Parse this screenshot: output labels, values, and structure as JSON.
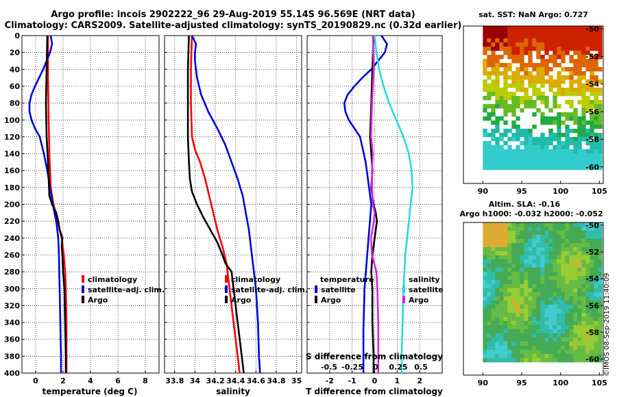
{
  "title_line1": "Argo profile: incois 2902222_96 29-Aug-2019 55.14S 96.569E (NRT data)",
  "title_line2": "Climatology: CARS2009. Satellite-adjusted climatology: synTS_20190829.nc (0.32d earlier)",
  "watermark": "©IMOS 08-Sep-2019 11:40:09",
  "colors": {
    "climatology": "#ff0000",
    "satellite": "#0000dd",
    "argo": "#000000",
    "sat_salinity": "#22dddd",
    "argo_salinity": "#dd22dd"
  },
  "chart_data": [
    {
      "type": "line",
      "name": "temperature",
      "xlabel": "temperature (deg C)",
      "xlim": [
        -1,
        9
      ],
      "xticks": [
        0,
        2,
        4,
        6,
        8
      ],
      "ylim": [
        400,
        0
      ],
      "yticks": [
        0,
        20,
        40,
        60,
        80,
        100,
        120,
        140,
        160,
        180,
        200,
        220,
        240,
        260,
        280,
        300,
        320,
        340,
        360,
        380,
        400
      ],
      "legend": [
        "climatology",
        "satellite-adj. clim.",
        "Argo"
      ],
      "series": [
        {
          "name": "climatology",
          "color": "climatology",
          "depth": [
            0,
            50,
            100,
            140,
            180,
            200,
            220,
            240,
            260,
            280,
            300,
            340,
            380,
            400
          ],
          "values": [
            0.9,
            0.9,
            0.95,
            1.0,
            1.1,
            1.3,
            1.6,
            1.9,
            2.05,
            2.15,
            2.2,
            2.25,
            2.25,
            2.25
          ]
        },
        {
          "name": "satellite-adj. clim.",
          "color": "satellite",
          "depth": [
            0,
            10,
            20,
            30,
            40,
            50,
            60,
            70,
            80,
            90,
            100,
            110,
            120,
            140,
            160,
            180,
            200,
            220,
            240,
            260,
            280,
            300,
            340,
            380,
            400
          ],
          "values": [
            1.1,
            1.2,
            1.05,
            0.8,
            0.55,
            0.25,
            -0.05,
            -0.3,
            -0.45,
            -0.45,
            -0.3,
            -0.05,
            0.3,
            0.6,
            0.85,
            1.05,
            1.25,
            1.5,
            1.65,
            1.7,
            1.72,
            1.75,
            1.8,
            1.85,
            1.85
          ]
        },
        {
          "name": "Argo",
          "color": "argo",
          "depth": [
            0,
            40,
            80,
            120,
            150,
            170,
            190,
            200,
            210,
            220,
            230,
            240,
            250,
            260,
            280,
            300,
            340,
            380,
            400
          ],
          "values": [
            0.85,
            0.8,
            0.75,
            0.8,
            0.9,
            0.95,
            1.0,
            1.2,
            1.5,
            1.65,
            1.75,
            1.95,
            1.9,
            1.95,
            2.0,
            2.1,
            2.15,
            2.2,
            2.2
          ]
        }
      ]
    },
    {
      "type": "line",
      "name": "salinity",
      "xlabel": "salinity",
      "xlim": [
        33.7,
        35.05
      ],
      "xticks": [
        33.8,
        34,
        34.2,
        34.4,
        34.6,
        34.8,
        35
      ],
      "xticklabels": [
        "33.8",
        "34",
        "34.2",
        "34.4",
        "34.6",
        "34.8",
        "35"
      ],
      "ylim": [
        400,
        0
      ],
      "legend": [
        "climatology",
        "satellite-adj. clim.",
        "Argo"
      ],
      "series": [
        {
          "name": "climatology",
          "color": "climatology",
          "depth": [
            0,
            40,
            80,
            120,
            135,
            150,
            170,
            190,
            210,
            230,
            250,
            270,
            300,
            340,
            380,
            400
          ],
          "values": [
            33.97,
            33.96,
            33.96,
            33.97,
            34.0,
            34.05,
            34.1,
            34.14,
            34.18,
            34.22,
            34.27,
            34.31,
            34.34,
            34.38,
            34.42,
            34.44
          ]
        },
        {
          "name": "satellite-adj. clim.",
          "color": "satellite",
          "depth": [
            0,
            10,
            20,
            30,
            50,
            70,
            90,
            110,
            130,
            150,
            170,
            190,
            210,
            230,
            260,
            300,
            340,
            380,
            400
          ],
          "values": [
            33.97,
            34.01,
            34.0,
            34.0,
            34.02,
            34.06,
            34.13,
            34.22,
            34.3,
            34.36,
            34.42,
            34.47,
            34.5,
            34.53,
            34.56,
            34.6,
            34.62,
            34.63,
            34.64
          ]
        },
        {
          "name": "Argo",
          "color": "argo",
          "depth": [
            0,
            40,
            80,
            120,
            150,
            170,
            185,
            200,
            215,
            230,
            245,
            260,
            270,
            280,
            300,
            340,
            380,
            400
          ],
          "values": [
            33.94,
            33.93,
            33.93,
            33.93,
            33.94,
            33.95,
            33.97,
            34.02,
            34.08,
            34.15,
            34.22,
            34.27,
            34.3,
            34.36,
            34.38,
            34.42,
            34.46,
            34.48
          ]
        }
      ]
    },
    {
      "type": "line",
      "name": "difference",
      "xlabel": "T difference from climatology",
      "xlim": [
        -3,
        3
      ],
      "xticks": [
        -2,
        -1,
        0,
        1,
        2
      ],
      "xlabel_top": "S difference from climatology",
      "s_ticklabels": [
        "-0.5",
        "-0.25",
        "0",
        "0.25",
        "0.5"
      ],
      "ylim": [
        400,
        0
      ],
      "legend_left": {
        "heading": "temperature",
        "items": [
          "satellite",
          "Argo"
        ]
      },
      "legend_right": {
        "heading": "salinity",
        "items": [
          "satellite",
          "Argo"
        ]
      },
      "series": [
        {
          "name": "T satellite",
          "color": "satellite",
          "depth": [
            0,
            10,
            20,
            30,
            40,
            50,
            60,
            70,
            80,
            90,
            100,
            110,
            120,
            150,
            200,
            250,
            300,
            350,
            400
          ],
          "values": [
            0.3,
            0.55,
            0.45,
            0.15,
            -0.15,
            -0.55,
            -0.9,
            -1.2,
            -1.35,
            -1.3,
            -1.15,
            -0.9,
            -0.65,
            -0.4,
            -0.15,
            -0.3,
            -0.45,
            -0.5,
            -0.5
          ]
        },
        {
          "name": "T Argo",
          "color": "argo",
          "depth": [
            0,
            40,
            80,
            120,
            140,
            160,
            180,
            190,
            200,
            210,
            220,
            240,
            260,
            280,
            300,
            340,
            380,
            400
          ],
          "values": [
            -0.05,
            -0.1,
            -0.15,
            -0.2,
            -0.15,
            -0.1,
            -0.15,
            -0.1,
            -0.05,
            0.05,
            0.1,
            0.0,
            -0.1,
            -0.15,
            -0.1,
            -0.1,
            -0.05,
            -0.05
          ]
        },
        {
          "name": "S satellite",
          "color": "sat_salinity",
          "depth": [
            0,
            20,
            40,
            60,
            80,
            100,
            120,
            140,
            160,
            180,
            200,
            220,
            240,
            260,
            280,
            300,
            340,
            380,
            400
          ],
          "values": [
            0.0,
            0.02,
            0.05,
            0.1,
            0.16,
            0.24,
            0.32,
            0.38,
            0.41,
            0.42,
            0.4,
            0.38,
            0.36,
            0.34,
            0.33,
            0.32,
            0.31,
            0.3,
            0.3
          ]
        },
        {
          "name": "S Argo",
          "color": "argo_salinity",
          "depth": [
            0,
            40,
            80,
            120,
            140,
            160,
            180,
            200,
            210,
            220,
            240,
            260,
            280,
            300,
            340,
            380,
            400
          ],
          "values": [
            -0.02,
            -0.01,
            -0.03,
            -0.04,
            -0.02,
            -0.03,
            -0.03,
            -0.02,
            0.0,
            -0.01,
            -0.04,
            -0.03,
            0.02,
            0.03,
            0.04,
            0.04,
            0.04
          ]
        }
      ]
    },
    {
      "type": "heatmap",
      "name": "sst-map",
      "title": "sat. SST: NaN Argo: 0.727",
      "xlim": [
        87.5,
        105.5
      ],
      "xticks": [
        90,
        95,
        100,
        105
      ],
      "ylim": [
        -61.2,
        -49.8
      ],
      "yticks": [
        -50,
        -52,
        -54,
        -56,
        -58,
        -60
      ]
    },
    {
      "type": "heatmap",
      "name": "sla-map",
      "title": "Altim. SLA: -0.16",
      "subtitle": "Argo h1000: -0.032 h2000: -0.052",
      "xlim": [
        87.5,
        105.5
      ],
      "xticks": [
        90,
        95,
        100,
        105
      ],
      "ylim": [
        -61.2,
        -49.8
      ],
      "yticks": [
        -50,
        -52,
        -54,
        -56,
        -58,
        -60
      ]
    }
  ]
}
